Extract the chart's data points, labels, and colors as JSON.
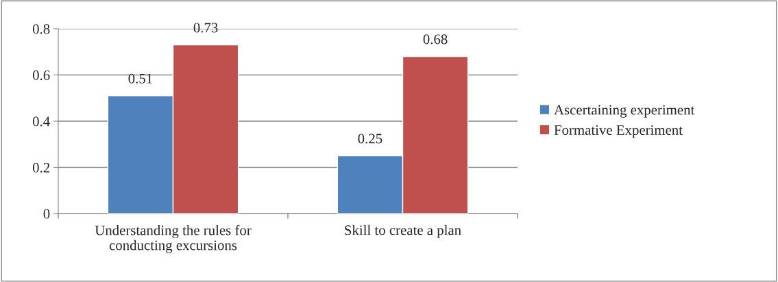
{
  "chart_data": {
    "type": "bar",
    "categories": [
      "Understanding the rules for\nconducting excursions",
      "Skill to create a plan"
    ],
    "series": [
      {
        "name": "Ascertaining experiment",
        "color": "#4f81bd",
        "values": [
          0.51,
          0.25
        ]
      },
      {
        "name": "Formative Experiment",
        "color": "#c0504d",
        "values": [
          0.73,
          0.68
        ]
      }
    ],
    "ylim": [
      0,
      0.8
    ],
    "yticks": [
      0,
      0.2,
      0.4,
      0.6,
      0.8
    ],
    "grid": "y",
    "legend": "right",
    "data_labels": true
  }
}
